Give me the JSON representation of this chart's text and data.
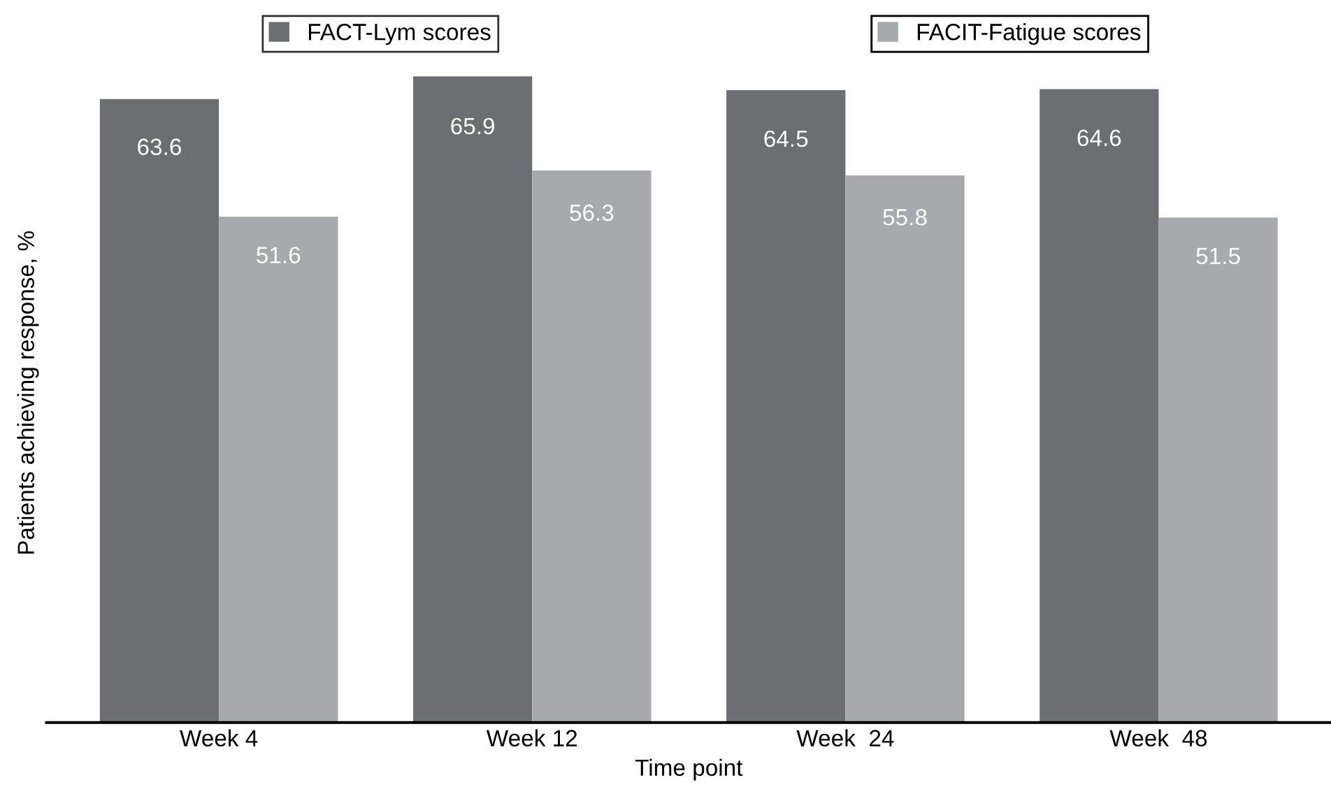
{
  "chart_data": {
    "type": "bar",
    "xlabel": "Time point",
    "ylabel": "Patients achieving response, %",
    "categories": [
      "Week 4",
      "Week 12",
      "Week  24",
      "Week  48"
    ],
    "series": [
      {
        "name": "FACT-Lym scores",
        "color": "#6d6e71",
        "values": [
          63.6,
          65.9,
          64.5,
          64.6
        ]
      },
      {
        "name": "FACIT-Fatigue scores",
        "color": "#a7a9ac",
        "values": [
          51.6,
          56.3,
          55.8,
          51.5
        ]
      }
    ],
    "data_labels": true,
    "legend": "top",
    "grid": false,
    "tick_labels": "x"
  }
}
